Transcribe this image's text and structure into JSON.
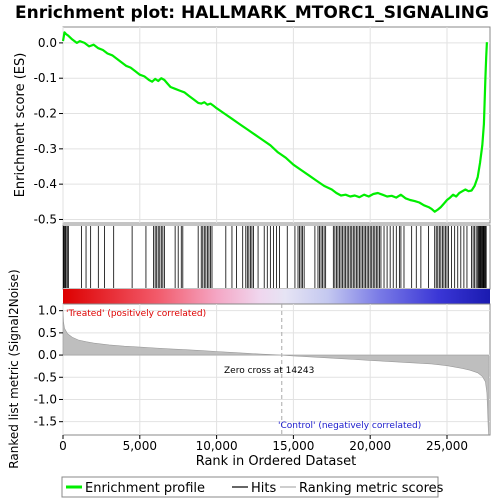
{
  "chart_data": [
    {
      "panel": "enrichment",
      "type": "line",
      "title": "Enrichment plot: HALLMARK_MTORC1_SIGNALING",
      "ylabel": "Enrichment score (ES)",
      "ylim": [
        -0.51,
        0.045
      ],
      "yticks": [
        0.0,
        -0.1,
        -0.2,
        -0.3,
        -0.4,
        -0.5
      ],
      "ytick_labels": [
        "0.0",
        "-0.1",
        "-0.2",
        "-0.3",
        "-0.4",
        "-0.5"
      ],
      "xlim": [
        0,
        27800
      ],
      "grid": true,
      "series": [
        {
          "name": "Enrichment profile",
          "color": "#00ee00",
          "x": [
            0,
            100,
            200,
            350,
            600,
            900,
            1100,
            1400,
            1700,
            2000,
            2300,
            2600,
            2900,
            3200,
            3500,
            3800,
            4100,
            4400,
            4700,
            5000,
            5300,
            5600,
            5800,
            6000,
            6200,
            6400,
            6600,
            6800,
            7000,
            7300,
            7600,
            7900,
            8200,
            8500,
            8800,
            9000,
            9200,
            9400,
            9600,
            9800,
            10000,
            10500,
            11000,
            11500,
            12000,
            12500,
            13000,
            13500,
            14000,
            14500,
            15000,
            15500,
            16000,
            16500,
            17000,
            17500,
            17800,
            18100,
            18400,
            18700,
            19000,
            19300,
            19600,
            19900,
            20200,
            20500,
            20800,
            21100,
            21400,
            21700,
            22000,
            22300,
            22600,
            22900,
            23200,
            23500,
            23800,
            24000,
            24200,
            24400,
            24600,
            24800,
            25000,
            25200,
            25400,
            25600,
            25800,
            26000,
            26200,
            26400,
            26600,
            26800,
            27000,
            27150,
            27300,
            27400,
            27450,
            27500,
            27550,
            27600
          ],
          "y": [
            0.005,
            0.03,
            0.025,
            0.02,
            0.01,
            0.0,
            0.005,
            0.0,
            -0.01,
            -0.005,
            -0.015,
            -0.02,
            -0.03,
            -0.035,
            -0.045,
            -0.055,
            -0.065,
            -0.07,
            -0.08,
            -0.09,
            -0.095,
            -0.105,
            -0.11,
            -0.102,
            -0.108,
            -0.1,
            -0.105,
            -0.115,
            -0.125,
            -0.13,
            -0.135,
            -0.14,
            -0.15,
            -0.16,
            -0.17,
            -0.172,
            -0.168,
            -0.175,
            -0.172,
            -0.178,
            -0.185,
            -0.2,
            -0.215,
            -0.23,
            -0.245,
            -0.26,
            -0.275,
            -0.29,
            -0.31,
            -0.325,
            -0.345,
            -0.36,
            -0.375,
            -0.39,
            -0.405,
            -0.415,
            -0.425,
            -0.432,
            -0.43,
            -0.435,
            -0.432,
            -0.437,
            -0.43,
            -0.435,
            -0.428,
            -0.425,
            -0.43,
            -0.435,
            -0.433,
            -0.438,
            -0.43,
            -0.44,
            -0.445,
            -0.448,
            -0.452,
            -0.46,
            -0.465,
            -0.47,
            -0.478,
            -0.472,
            -0.465,
            -0.455,
            -0.445,
            -0.438,
            -0.43,
            -0.435,
            -0.425,
            -0.42,
            -0.415,
            -0.42,
            -0.418,
            -0.405,
            -0.38,
            -0.34,
            -0.29,
            -0.23,
            -0.17,
            -0.1,
            -0.04,
            0.002
          ]
        }
      ],
      "hits_label": "Hits",
      "hit_positions": [
        30,
        60,
        90,
        150,
        200,
        280,
        350,
        1200,
        1500,
        1800,
        2300,
        2700,
        3300,
        4500,
        5400,
        5900,
        6000,
        6100,
        6200,
        6300,
        6400,
        6500,
        6600,
        7300,
        7500,
        7700,
        7800,
        8800,
        9000,
        9100,
        9200,
        9300,
        9400,
        9500,
        9600,
        9700,
        10600,
        11000,
        11300,
        11700,
        11900,
        12000,
        12100,
        12200,
        12300,
        12400,
        12700,
        13100,
        13300,
        13500,
        13700,
        13900,
        14100,
        14600,
        15100,
        15300,
        15400,
        15500,
        15600,
        15700,
        16400,
        16600,
        16700,
        16800,
        16900,
        17000,
        17100,
        17600,
        17700,
        17800,
        17900,
        18000,
        18100,
        18200,
        18300,
        18400,
        18500,
        18600,
        18700,
        18800,
        18900,
        19000,
        19100,
        19200,
        19300,
        19400,
        19500,
        19600,
        19700,
        19800,
        19900,
        20000,
        20100,
        20200,
        20300,
        20400,
        20500,
        20600,
        20700,
        20900,
        21100,
        21300,
        21500,
        21700,
        21900,
        22000,
        22200,
        22700,
        23000,
        23300,
        23800,
        24200,
        24300,
        24400,
        24500,
        24600,
        24700,
        24800,
        24900,
        25000,
        25100,
        25300,
        25500,
        25700,
        25900,
        26100,
        26300,
        26600,
        26700,
        26800,
        26900,
        27000,
        27050,
        27100,
        27150,
        27200,
        27250,
        27300,
        27350,
        27400,
        27450,
        27500,
        27550
      ]
    },
    {
      "panel": "ranked-metric",
      "type": "area",
      "xlabel": "Rank in Ordered Dataset",
      "ylabel": "Ranked list metric (Signal2Noise)",
      "xlim": [
        0,
        27800
      ],
      "ylim": [
        -1.8,
        1.15
      ],
      "xticks": [
        0,
        5000,
        10000,
        15000,
        20000,
        25000
      ],
      "xtick_labels": [
        "0",
        "5,000",
        "10,000",
        "15,000",
        "20,000",
        "25,000"
      ],
      "yticks": [
        1.0,
        0.5,
        0.0,
        -0.5,
        -1.0,
        -1.5
      ],
      "ytick_labels": [
        "1.0",
        "0.5",
        "0.0",
        "-0.5",
        "-1.0",
        "-1.5"
      ],
      "grid": true,
      "color": "#bebebe",
      "series": [
        {
          "name": "Ranking metric scores",
          "x": [
            0,
            30,
            100,
            300,
            600,
            1000,
            1500,
            2000,
            3000,
            4000,
            5000,
            6000,
            7000,
            8000,
            9000,
            10000,
            11000,
            12000,
            13000,
            14243,
            15000,
            16000,
            17000,
            18000,
            19000,
            20000,
            21000,
            22000,
            23000,
            24000,
            25000,
            25500,
            26000,
            26500,
            27000,
            27300,
            27500,
            27600,
            27650,
            27700
          ],
          "values": [
            1.0,
            0.75,
            0.6,
            0.48,
            0.4,
            0.34,
            0.3,
            0.27,
            0.23,
            0.2,
            0.18,
            0.16,
            0.14,
            0.12,
            0.1,
            0.08,
            0.06,
            0.04,
            0.02,
            0.0,
            -0.02,
            -0.04,
            -0.06,
            -0.08,
            -0.1,
            -0.12,
            -0.14,
            -0.16,
            -0.18,
            -0.2,
            -0.24,
            -0.27,
            -0.3,
            -0.34,
            -0.4,
            -0.48,
            -0.6,
            -0.85,
            -1.3,
            -1.8
          ]
        }
      ],
      "annotations": {
        "zero_cross": "Zero cross at 14243",
        "zero_cross_rank": 14243,
        "positive_label": "'Treated' (positively correlated)",
        "negative_label": "'Control' (negatively correlated)",
        "positive_color": "#dd0000",
        "negative_color": "#0000cc"
      }
    }
  ],
  "legend": {
    "position": "bottom",
    "items": [
      {
        "label": "Enrichment profile",
        "color": "#00ee00"
      },
      {
        "label": "Hits",
        "color": "#000000"
      },
      {
        "label": "Ranking metric scores",
        "color": "#bebebe"
      }
    ]
  }
}
